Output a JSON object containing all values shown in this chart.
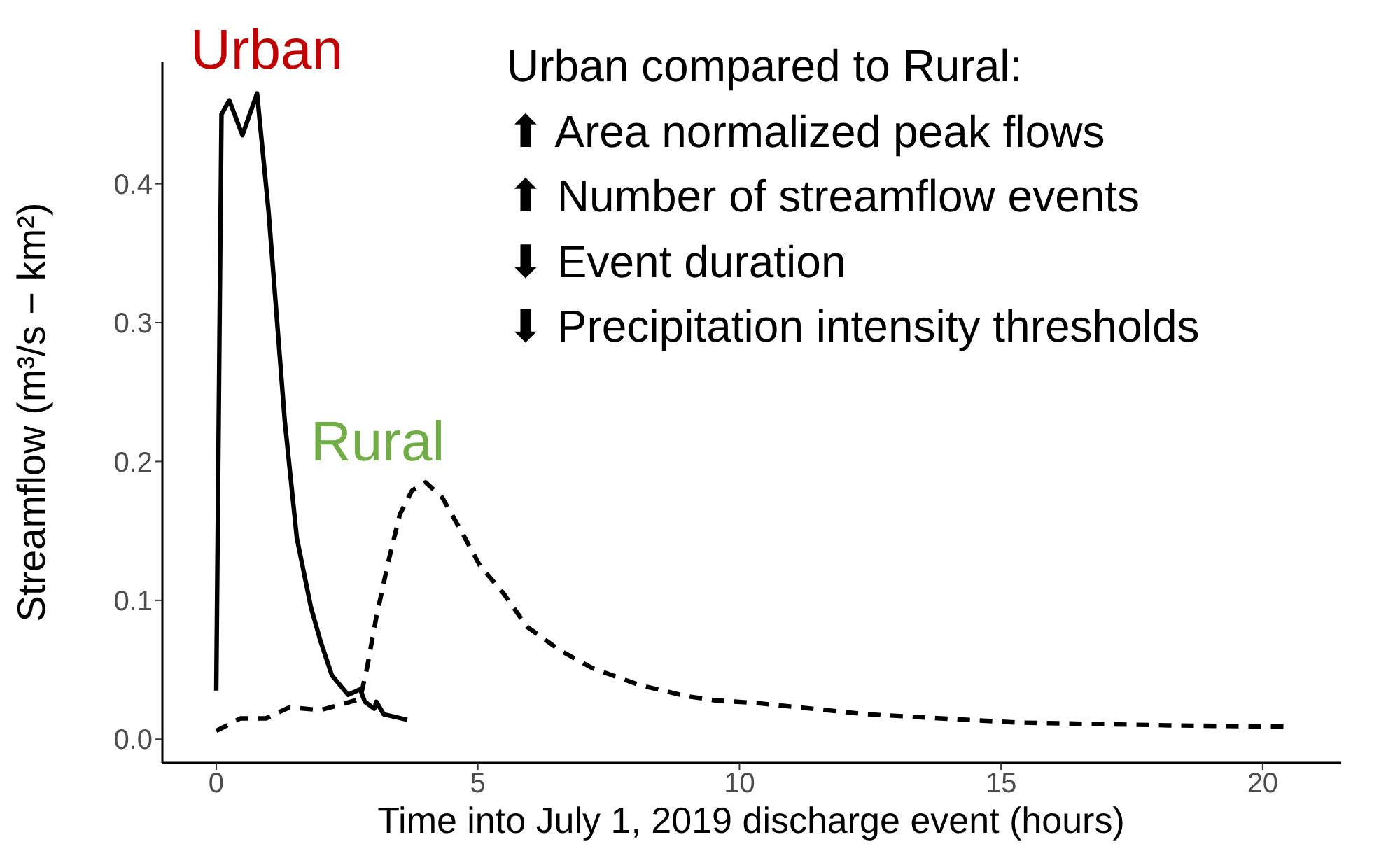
{
  "chart_data": {
    "type": "line",
    "xlabel": "Time into July 1, 2019 discharge event (hours)",
    "ylabel": "Streamflow (m³/s − km²)",
    "xlim": [
      -1.03,
      21.5
    ],
    "xticks": [
      0,
      5,
      10,
      15,
      20
    ],
    "ylim": [
      -0.017,
      0.488
    ],
    "yticks": [
      {
        "value": 0,
        "label": "0.0"
      },
      {
        "value": 0.1,
        "label": "0.1"
      },
      {
        "value": 0.2,
        "label": "0.2"
      },
      {
        "value": 0.3,
        "label": "0.3"
      },
      {
        "value": 0.4,
        "label": "0.4"
      }
    ],
    "grid": false,
    "legend": false,
    "marker": "none",
    "annotations": [
      "Urban compared to Rural:",
      "⬆ Area normalized peak flows",
      "⬆ Number of streamflow events",
      "⬇ Event duration",
      "⬇ Precipitation intensity thresholds"
    ],
    "series": [
      {
        "name": "Urban",
        "color": "#000000",
        "line_style": "solid",
        "x": [
          0,
          0.1,
          0.25,
          0.5,
          0.78,
          1.0,
          1.31,
          1.54,
          1.81,
          1.99,
          2.21,
          2.52,
          2.75,
          2.84,
          3.02,
          3.06,
          3.2,
          3.65
        ],
        "values": [
          0.035,
          0.45,
          0.46,
          0.435,
          0.465,
          0.38,
          0.229,
          0.145,
          0.095,
          0.071,
          0.046,
          0.032,
          0.036,
          0.027,
          0.022,
          0.027,
          0.018,
          0.014
        ]
      },
      {
        "name": "Rural",
        "color": "#000000",
        "line_style": "dashed",
        "x": [
          0,
          0.46,
          0.95,
          1.4,
          1.99,
          2.48,
          2.75,
          2.88,
          3.06,
          3.29,
          3.51,
          3.74,
          4.0,
          4.32,
          4.68,
          5.04,
          5.49,
          5.94,
          6.57,
          7.2,
          8.09,
          8.99,
          9.54,
          10.34,
          12.43,
          15.31,
          18.2,
          20.5
        ],
        "values": [
          0.006,
          0.015,
          0.015,
          0.023,
          0.021,
          0.026,
          0.029,
          0.051,
          0.088,
          0.128,
          0.162,
          0.179,
          0.185,
          0.174,
          0.15,
          0.125,
          0.105,
          0.081,
          0.064,
          0.051,
          0.039,
          0.031,
          0.028,
          0.026,
          0.018,
          0.012,
          0.01,
          0.009
        ]
      }
    ]
  }
}
